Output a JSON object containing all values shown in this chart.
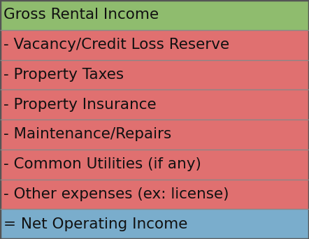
{
  "rows": [
    {
      "text": "Gross Rental Income",
      "color": "#8fbc6e",
      "prefix": ""
    },
    {
      "text": "Vacancy/Credit Loss Reserve",
      "color": "#e07070",
      "prefix": "- "
    },
    {
      "text": "Property Taxes",
      "color": "#e07070",
      "prefix": "- "
    },
    {
      "text": "Property Insurance",
      "color": "#e07070",
      "prefix": "- "
    },
    {
      "text": "Maintenance/Repairs",
      "color": "#e07070",
      "prefix": "- "
    },
    {
      "text": "Common Utilities (if any)",
      "color": "#e07070",
      "prefix": "- "
    },
    {
      "text": "Other expenses (ex: license)",
      "color": "#e07070",
      "prefix": "- "
    },
    {
      "text": "Net Operating Income",
      "color": "#7aadcc",
      "prefix": "= "
    }
  ],
  "divider_color": "#888888",
  "divider_lw": 1.0,
  "outer_border_color": "#555555",
  "outer_border_lw": 2.5,
  "text_color": "#111111",
  "font_size": 15.5,
  "fig_width": 4.42,
  "fig_height": 3.42,
  "dpi": 100
}
